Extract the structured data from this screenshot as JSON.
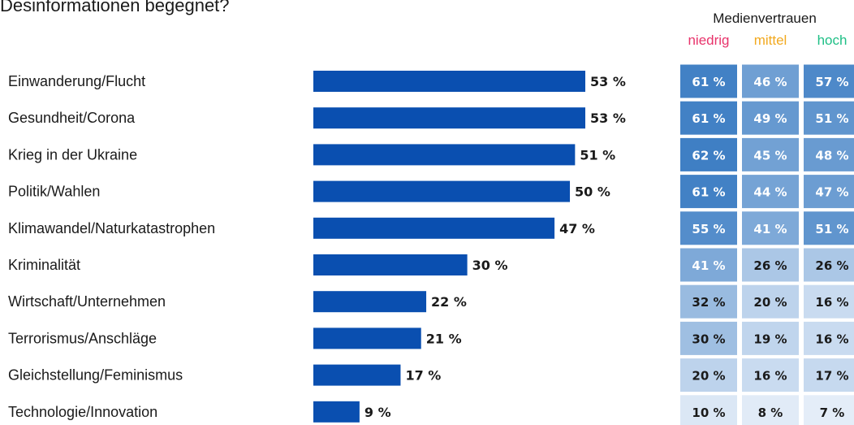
{
  "title": "Desinformationen begegnet?",
  "chart_data": {
    "type": "bar",
    "orientation": "horizontal",
    "categories": [
      "Einwanderung/Flucht",
      "Gesundheit/Corona",
      "Krieg in der Ukraine",
      "Politik/Wahlen",
      "Klimawandel/Naturkatastrophen",
      "Kriminalität",
      "Wirtschaft/Unternehmen",
      "Terrorismus/Anschläge",
      "Gleichstellung/Feminismus",
      "Technologie/Innovation"
    ],
    "values": [
      53,
      53,
      51,
      50,
      47,
      30,
      22,
      21,
      17,
      9
    ],
    "value_labels": [
      "53 %",
      "53 %",
      "51 %",
      "50 %",
      "47 %",
      "30 %",
      "22 %",
      "21 %",
      "17 %",
      "9 %"
    ],
    "bar_color": "#0a4fb0",
    "xlim": [
      0,
      60
    ]
  },
  "heatmap": {
    "type": "heatmap",
    "title": "Medienvertrauen",
    "columns": [
      {
        "name": "niedrig",
        "color": "#e8336b"
      },
      {
        "name": "mittel",
        "color": "#f2a91f"
      },
      {
        "name": "hoch",
        "color": "#1fbf86"
      }
    ],
    "values": [
      [
        61,
        46,
        57
      ],
      [
        61,
        49,
        51
      ],
      [
        62,
        45,
        48
      ],
      [
        61,
        44,
        47
      ],
      [
        55,
        41,
        51
      ],
      [
        41,
        26,
        26
      ],
      [
        32,
        20,
        16
      ],
      [
        30,
        19,
        16
      ],
      [
        20,
        16,
        17
      ],
      [
        10,
        8,
        7
      ]
    ],
    "labels": [
      [
        "61 %",
        "46 %",
        "57 %"
      ],
      [
        "61 %",
        "49 %",
        "51 %"
      ],
      [
        "62 %",
        "45 %",
        "48 %"
      ],
      [
        "61 %",
        "44 %",
        "47 %"
      ],
      [
        "55 %",
        "41 %",
        "51 %"
      ],
      [
        "41 %",
        "26 %",
        "26 %"
      ],
      [
        "32 %",
        "20 %",
        "16 %"
      ],
      [
        "30 %",
        "19 %",
        "16 %"
      ],
      [
        "20 %",
        "16 %",
        "17 %"
      ],
      [
        "10 %",
        "8 %",
        "7 %"
      ]
    ],
    "color_low": "#eaf1fa",
    "color_high": "#3f7fc4"
  }
}
